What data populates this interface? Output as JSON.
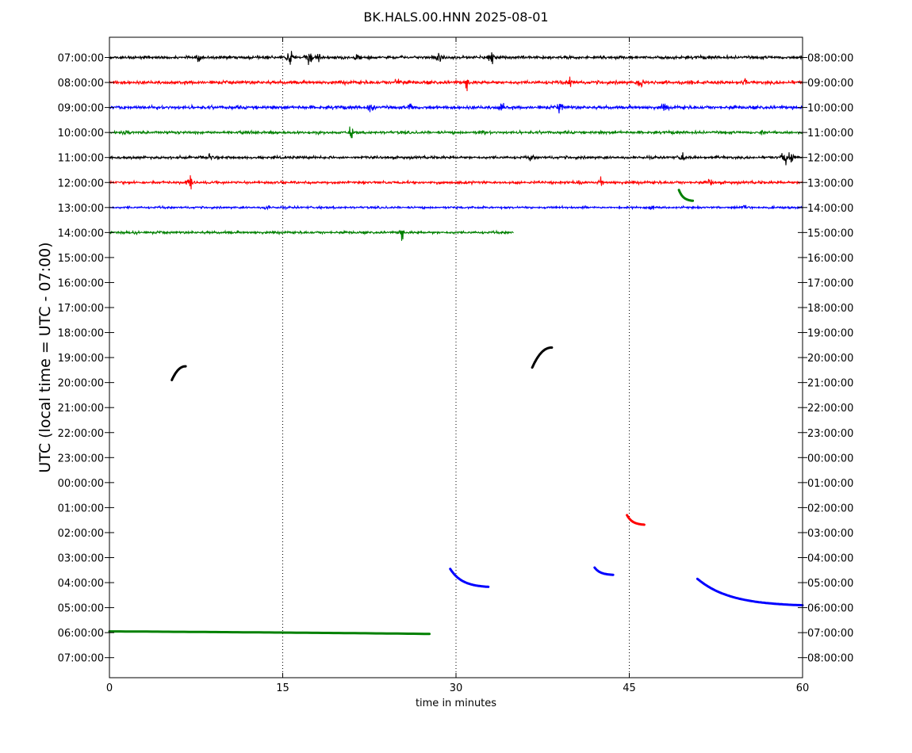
{
  "chart_data": {
    "type": "line",
    "title": "BK.HALS.00.HNN 2025-08-01",
    "xlabel": "time in minutes",
    "ylabel": "UTC (local time = UTC - 07:00)",
    "xlim": [
      0,
      60
    ],
    "x_ticks": [
      0,
      15,
      30,
      45,
      60
    ],
    "x_tick_labels": [
      "0",
      "15",
      "30",
      "45",
      "60"
    ],
    "vertical_gridlines_at": [
      15,
      30,
      45
    ],
    "grid_style": "dotted",
    "left_tick_labels": [
      "07:00:00",
      "08:00:00",
      "09:00:00",
      "10:00:00",
      "11:00:00",
      "12:00:00",
      "13:00:00",
      "14:00:00",
      "15:00:00",
      "16:00:00",
      "17:00:00",
      "18:00:00",
      "19:00:00",
      "20:00:00",
      "21:00:00",
      "22:00:00",
      "23:00:00",
      "00:00:00",
      "01:00:00",
      "02:00:00",
      "03:00:00",
      "04:00:00",
      "05:00:00",
      "06:00:00",
      "07:00:00"
    ],
    "right_tick_labels": [
      "08:00:00",
      "09:00:00",
      "10:00:00",
      "11:00:00",
      "12:00:00",
      "13:00:00",
      "14:00:00",
      "15:00:00",
      "16:00:00",
      "17:00:00",
      "18:00:00",
      "19:00:00",
      "20:00:00",
      "21:00:00",
      "22:00:00",
      "23:00:00",
      "00:00:00",
      "01:00:00",
      "02:00:00",
      "03:00:00",
      "04:00:00",
      "05:00:00",
      "06:00:00",
      "07:00:00",
      "08:00:00"
    ],
    "color_cycle": [
      "#000000",
      "#ff0000",
      "#0000ff",
      "#008000"
    ],
    "traces": [
      {
        "row": 0,
        "color": "#000000",
        "type": "noise",
        "x": [
          0,
          60
        ],
        "amp": 0.5,
        "spikes": [
          [
            15.6,
            1.0
          ],
          [
            17.3,
            1.2
          ],
          [
            33.1,
            0.9
          ],
          [
            7.8,
            0.4
          ],
          [
            18.2,
            0.5
          ],
          [
            21.5,
            0.45
          ],
          [
            28.5,
            0.45
          ]
        ]
      },
      {
        "row": 1,
        "color": "#ff0000",
        "type": "noise",
        "x": [
          0,
          60
        ],
        "amp": 0.55,
        "spikes": [
          [
            25.0,
            0.55
          ],
          [
            31.0,
            0.6
          ],
          [
            40.0,
            0.6
          ],
          [
            46.0,
            0.55
          ],
          [
            55.0,
            0.45
          ]
        ]
      },
      {
        "row": 2,
        "color": "#0000ff",
        "type": "noise",
        "x": [
          0,
          60
        ],
        "amp": 0.55,
        "spikes": [
          [
            22.7,
            0.6
          ],
          [
            26.0,
            0.5
          ],
          [
            34.0,
            0.55
          ],
          [
            39.0,
            0.5
          ],
          [
            48.0,
            0.5
          ]
        ]
      },
      {
        "row": 3,
        "color": "#008000",
        "type": "noise",
        "x": [
          0,
          60
        ],
        "amp": 0.45,
        "spikes": [
          [
            20.9,
            0.6
          ],
          [
            1.5,
            0.35
          ],
          [
            32.3,
            0.4
          ],
          [
            56.5,
            0.35
          ]
        ]
      },
      {
        "row": 4,
        "color": "#000000",
        "type": "noise",
        "x": [
          0,
          60
        ],
        "amp": 0.45,
        "spikes": [
          [
            8.7,
            0.55
          ],
          [
            36.5,
            0.4
          ],
          [
            49.5,
            0.55
          ],
          [
            58.4,
            1.0
          ],
          [
            59.0,
            0.7
          ]
        ]
      },
      {
        "row": 5,
        "color": "#ff0000",
        "type": "noise",
        "x": [
          0,
          60
        ],
        "amp": 0.45,
        "spikes": [
          [
            6.9,
            1.0
          ],
          [
            40.6,
            0.4
          ],
          [
            42.5,
            0.45
          ],
          [
            52.0,
            0.35
          ]
        ]
      },
      {
        "row": 6,
        "color": "#0000ff",
        "type": "noise",
        "x": [
          0,
          60
        ],
        "amp": 0.35,
        "spikes": [
          [
            13.6,
            0.35
          ],
          [
            47.0,
            0.4
          ],
          [
            55.0,
            0.35
          ]
        ]
      },
      {
        "row": 7,
        "color": "#008000",
        "type": "noise",
        "x": [
          0,
          35
        ],
        "amp": 0.4,
        "spikes": [
          [
            25.3,
            0.6
          ],
          [
            2.3,
            0.35
          ]
        ]
      },
      {
        "row": 5.3,
        "color": "#008000",
        "type": "curve",
        "x": [
          49.3,
          50.5
        ],
        "dy": 0.45,
        "shape": "decay"
      },
      {
        "row": 12.9,
        "color": "#000000",
        "type": "curve",
        "x": [
          5.4,
          6.6
        ],
        "dy": -0.55,
        "shape": "rise"
      },
      {
        "row": 12.4,
        "color": "#000000",
        "type": "curve",
        "x": [
          36.6,
          38.3
        ],
        "dy": -0.8,
        "shape": "rise"
      },
      {
        "row": 18.3,
        "color": "#ff0000",
        "type": "curve",
        "x": [
          44.8,
          46.3
        ],
        "dy": 0.4,
        "shape": "decay"
      },
      {
        "row": 20.45,
        "color": "#0000ff",
        "type": "curve",
        "x": [
          29.5,
          32.8
        ],
        "dy": 0.75,
        "shape": "decay"
      },
      {
        "row": 20.4,
        "color": "#0000ff",
        "type": "curve",
        "x": [
          42.0,
          43.6
        ],
        "dy": 0.3,
        "shape": "decay"
      },
      {
        "row": 20.85,
        "color": "#0000ff",
        "type": "curve",
        "x": [
          50.9,
          60
        ],
        "dy": 1.1,
        "shape": "decay"
      },
      {
        "row": 22.95,
        "color": "#008000",
        "type": "curve",
        "x": [
          0,
          27.7
        ],
        "dy": 0.1,
        "shape": "linear"
      }
    ]
  }
}
